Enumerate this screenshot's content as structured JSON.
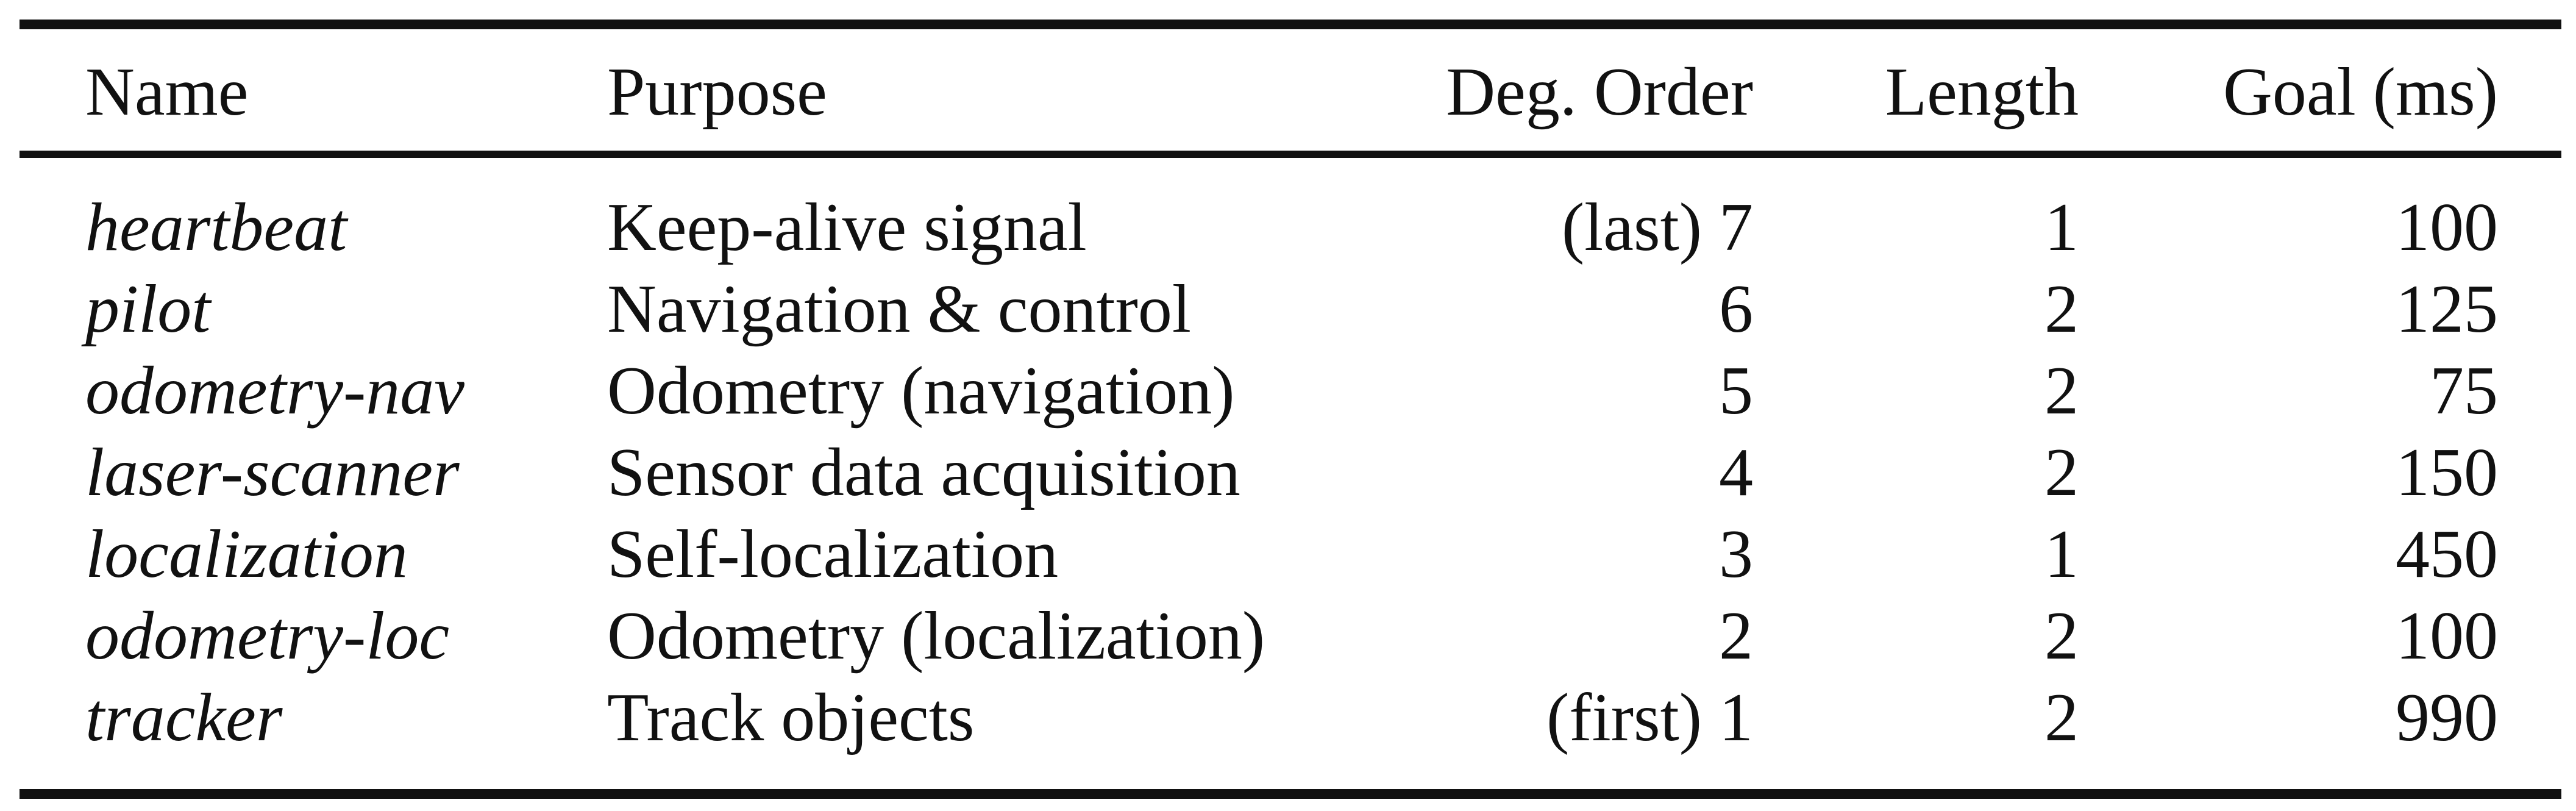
{
  "table": {
    "headers": {
      "name": "Name",
      "purpose": "Purpose",
      "order": "Deg. Order",
      "length": "Length",
      "goal": "Goal (ms)"
    },
    "rows": [
      {
        "name": "heartbeat",
        "purpose": "Keep-alive signal",
        "order": "(last) 7",
        "length": "1",
        "goal": "100"
      },
      {
        "name": "pilot",
        "purpose": "Navigation & control",
        "order": "6",
        "length": "2",
        "goal": "125"
      },
      {
        "name": "odometry-nav",
        "purpose": "Odometry (navigation)",
        "order": "5",
        "length": "2",
        "goal": "75"
      },
      {
        "name": "laser-scanner",
        "purpose": "Sensor data acquisition",
        "order": "4",
        "length": "2",
        "goal": "150"
      },
      {
        "name": "localization",
        "purpose": "Self-localization",
        "order": "3",
        "length": "1",
        "goal": "450"
      },
      {
        "name": "odometry-loc",
        "purpose": "Odometry (localization)",
        "order": "2",
        "length": "2",
        "goal": "100"
      },
      {
        "name": "tracker",
        "purpose": "Track objects",
        "order": "(first) 1",
        "length": "2",
        "goal": "990"
      }
    ]
  }
}
